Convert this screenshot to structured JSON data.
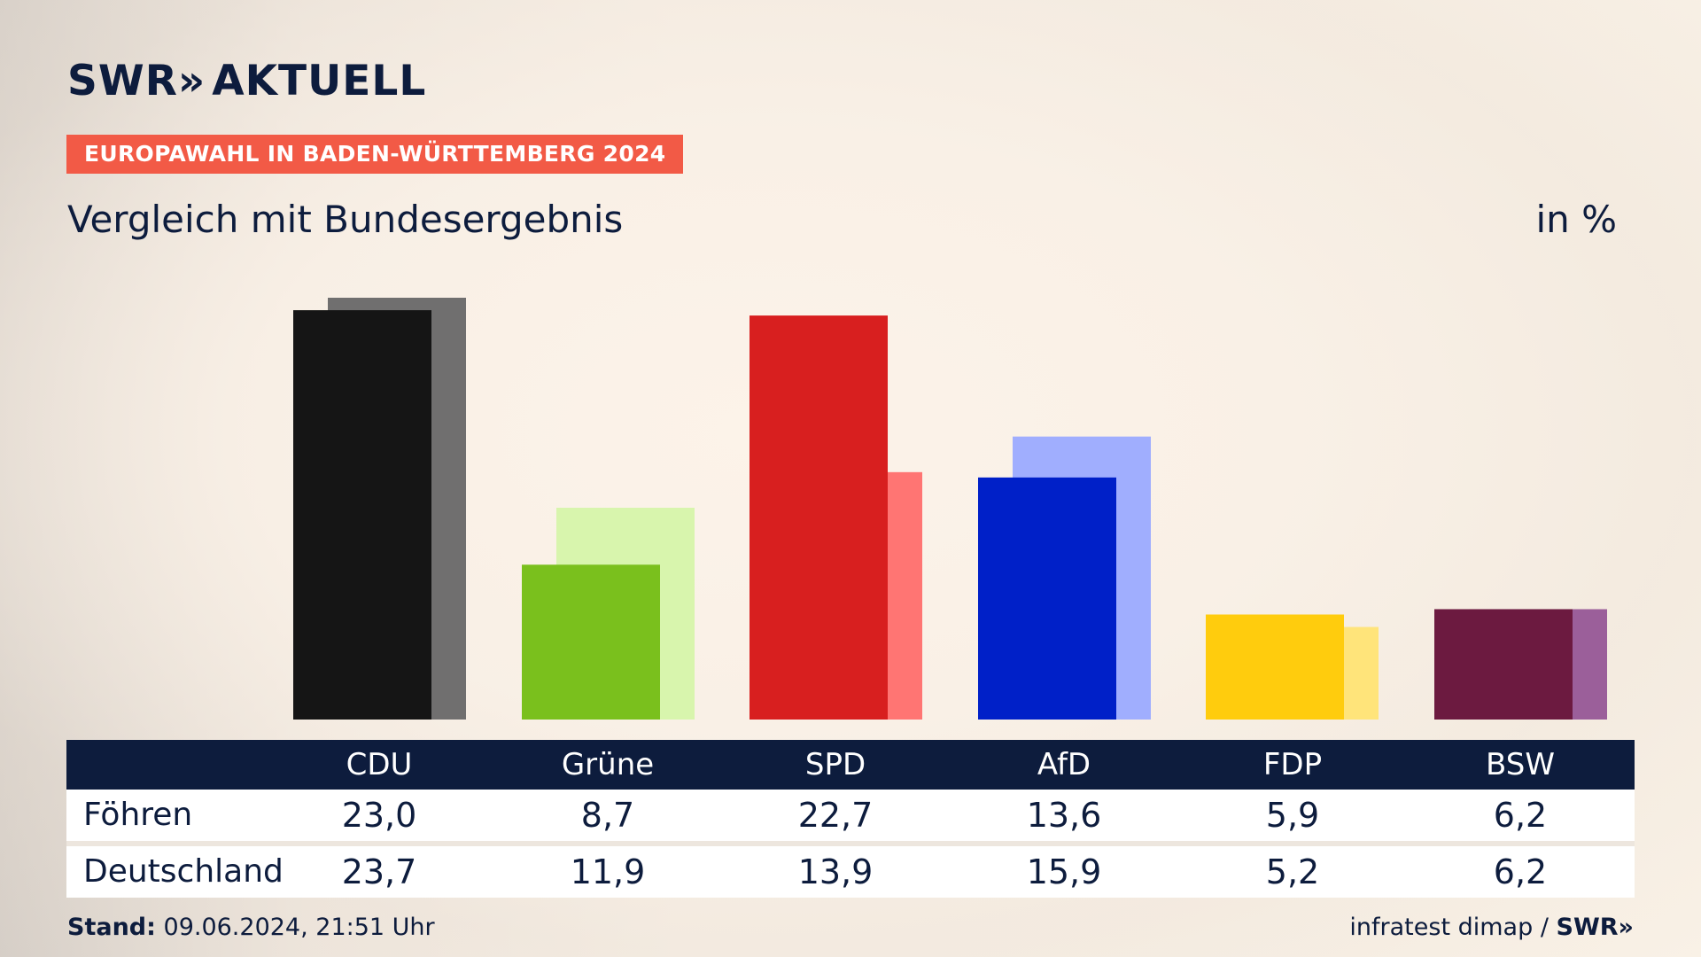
{
  "header": {
    "logo_text": "SWR",
    "logo_chevrons": "»",
    "logo_suffix": "AKTUELL",
    "tag": "EUROPAWAHL IN BADEN-WÜRTTEMBERG 2024",
    "subtitle": "Vergleich mit Bundesergebnis",
    "unit": "in %"
  },
  "table": {
    "rows": [
      {
        "label": "Föhren",
        "values": [
          "23,0",
          "8,7",
          "22,7",
          "13,6",
          "5,9",
          "6,2"
        ]
      },
      {
        "label": "Deutschland",
        "values": [
          "23,7",
          "11,9",
          "13,9",
          "15,9",
          "5,2",
          "6,2"
        ]
      }
    ]
  },
  "footer": {
    "stand_label": "Stand:",
    "stand_value": "09.06.2024, 21:51 Uhr",
    "source": "infratest dimap /",
    "source_brand": "SWR»"
  },
  "chart_data": {
    "type": "bar",
    "categories": [
      "CDU",
      "Grüne",
      "SPD",
      "AfD",
      "FDP",
      "BSW"
    ],
    "series": [
      {
        "values": [
          23.0,
          8.7,
          22.7,
          13.6,
          5.9,
          6.2
        ],
        "colors": [
          "#151515",
          "#7ac01d",
          "#d81f1f",
          "#0020c8",
          "#ffcc0d",
          "#6c1a40"
        ]
      },
      {
        "values": [
          23.7,
          11.9,
          13.9,
          15.9,
          5.2,
          6.2
        ],
        "colors": [
          "#706f6f",
          "#d8f5ad",
          "#ff7573",
          "#a0aefe",
          "#ffe47a",
          "#9b5f9a"
        ]
      }
    ],
    "ylabel": "in %",
    "ylim": [
      0,
      23.7
    ],
    "grid": false,
    "legend": "none"
  }
}
